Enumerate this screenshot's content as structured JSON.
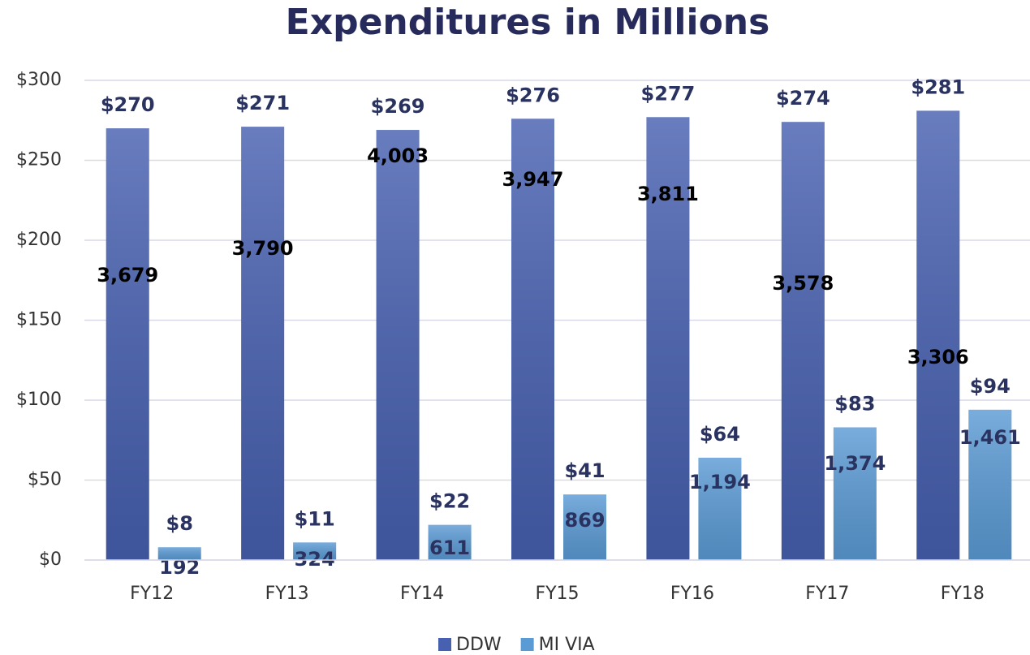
{
  "chart_data": {
    "type": "bar",
    "title": "Expenditures in Millions",
    "categories": [
      "FY12",
      "FY13",
      "FY14",
      "FY15",
      "FY16",
      "FY17",
      "FY18"
    ],
    "series": [
      {
        "name": "DDW",
        "color": "#4760b0",
        "values": [
          270,
          271,
          269,
          276,
          277,
          274,
          281
        ],
        "value_labels": [
          "$270",
          "$271",
          "$269",
          "$276",
          "$277",
          "$274",
          "$281"
        ],
        "annotations": [
          "3,679",
          "3,790",
          "4,003",
          "3,947",
          "3,811",
          "3,578",
          "3,306"
        ]
      },
      {
        "name": "MI VIA",
        "color": "#5b9bd5",
        "values": [
          8,
          11,
          22,
          41,
          64,
          83,
          94
        ],
        "value_labels": [
          "$8",
          "$11",
          "$22",
          "$41",
          "$64",
          "$83",
          "$94"
        ],
        "annotations": [
          "192",
          "324",
          "611",
          "869",
          "1,194",
          "1,374",
          "1,461"
        ]
      }
    ],
    "ylim": [
      0,
      300
    ],
    "yticks": [
      {
        "value": 0,
        "label": "$0"
      },
      {
        "value": 50,
        "label": "$50"
      },
      {
        "value": 100,
        "label": "$100"
      },
      {
        "value": 150,
        "label": "$150"
      },
      {
        "value": 200,
        "label": "$200"
      },
      {
        "value": 250,
        "label": "$250"
      },
      {
        "value": 300,
        "label": "$300"
      }
    ],
    "grid": true,
    "legend": "bottom"
  }
}
